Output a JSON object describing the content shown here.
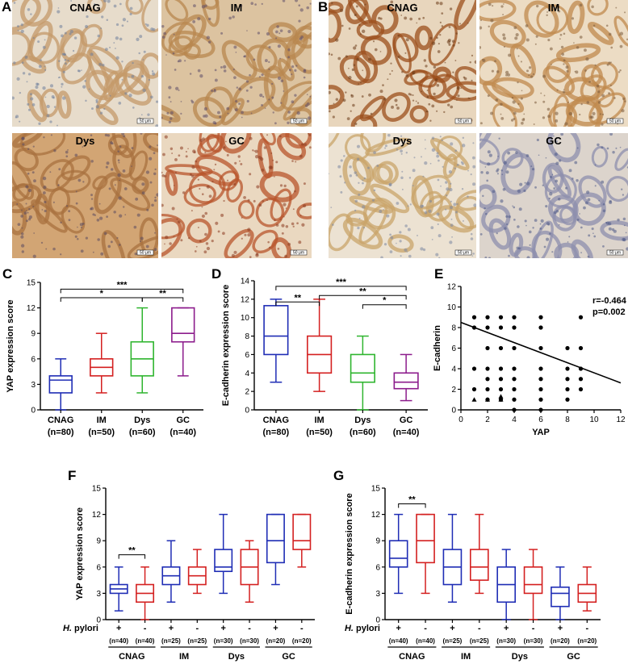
{
  "panels": {
    "A": {
      "label": "A",
      "images": [
        {
          "label": "CNAG",
          "scale": "50 μm",
          "bg": "#e7dccb",
          "tone": "#c49a6a",
          "nuc": "#6f7f9c"
        },
        {
          "label": "IM",
          "scale": "50 μm",
          "bg": "#dcc3a0",
          "tone": "#b8874f",
          "nuc": "#5e4f6a"
        },
        {
          "label": "Dys",
          "scale": "50 μm",
          "bg": "#d2a574",
          "tone": "#a8713f",
          "nuc": "#5a4a60"
        },
        {
          "label": "GC",
          "scale": "50 μm",
          "bg": "#ead8c0",
          "tone": "#b8552c",
          "nuc": "#8a3a1f"
        }
      ]
    },
    "B": {
      "label": "B",
      "images": [
        {
          "label": "CNAG",
          "scale": "50 μm",
          "bg": "#e8d6bd",
          "tone": "#9c4f1c",
          "nuc": "#6a3a18"
        },
        {
          "label": "IM",
          "scale": "50 μm",
          "bg": "#ecdcc4",
          "tone": "#c08a4e",
          "nuc": "#7a5a3a"
        },
        {
          "label": "Dys",
          "scale": "50 μm",
          "bg": "#ece2d2",
          "tone": "#c9a46a",
          "nuc": "#7b86a0"
        },
        {
          "label": "GC",
          "scale": "50 μm",
          "bg": "#dcd4cc",
          "tone": "#8d8fae",
          "nuc": "#4f5a86"
        }
      ]
    }
  },
  "chart_data": [
    {
      "panel": "C",
      "type": "boxplot",
      "ylabel": "YAP  expression score",
      "ylim": [
        0,
        15
      ],
      "yticks": [
        0,
        3,
        6,
        9,
        12,
        15
      ],
      "categories": [
        "CNAG",
        "IM",
        "Dys",
        "GC"
      ],
      "ns": [
        "(n=80)",
        "(n=50)",
        "(n=60)",
        "(n=40)"
      ],
      "colors": [
        "#1f2db5",
        "#d42020",
        "#2fb52f",
        "#8c1c8c"
      ],
      "boxes": [
        {
          "min": 0,
          "q1": 2,
          "median": 3.5,
          "q3": 4,
          "max": 6
        },
        {
          "min": 2,
          "q1": 4,
          "median": 5,
          "q3": 6,
          "max": 9
        },
        {
          "min": 2,
          "q1": 4,
          "median": 6,
          "q3": 8,
          "max": 12
        },
        {
          "min": 4,
          "q1": 8,
          "median": 9,
          "q3": 12,
          "max": 12
        }
      ],
      "brackets": [
        {
          "from": 0,
          "to": 3,
          "label": "***",
          "y": 14.2
        },
        {
          "from": 0,
          "to": 2,
          "label": "*",
          "y": 13.2
        },
        {
          "from": 2,
          "to": 3,
          "label": "**",
          "y": 13.2
        }
      ]
    },
    {
      "panel": "D",
      "type": "boxplot",
      "ylabel": "E-cadherin  expression score",
      "ylim": [
        0,
        14
      ],
      "yticks": [
        0,
        2,
        4,
        6,
        8,
        10,
        12,
        14
      ],
      "categories": [
        "CNAG",
        "IM",
        "Dys",
        "GC"
      ],
      "ns": [
        "(n=80)",
        "(n=50)",
        "(n=60)",
        "(n=40)"
      ],
      "colors": [
        "#1f2db5",
        "#d42020",
        "#2fb52f",
        "#8c1c8c"
      ],
      "boxes": [
        {
          "min": 3,
          "q1": 6,
          "median": 8,
          "q3": 11.3,
          "max": 12
        },
        {
          "min": 2,
          "q1": 4,
          "median": 6,
          "q3": 8,
          "max": 12
        },
        {
          "min": 0,
          "q1": 3,
          "median": 4,
          "q3": 6,
          "max": 8
        },
        {
          "min": 1,
          "q1": 2.3,
          "median": 3,
          "q3": 4,
          "max": 6
        }
      ],
      "brackets": [
        {
          "from": 0,
          "to": 3,
          "label": "***",
          "y": 13.4
        },
        {
          "from": 1,
          "to": 3,
          "label": "**",
          "y": 12.4
        },
        {
          "from": 0,
          "to": 1,
          "label": "**",
          "y": 11.7
        },
        {
          "from": 2,
          "to": 3,
          "label": "*",
          "y": 11.4
        }
      ]
    },
    {
      "panel": "E",
      "type": "scatter",
      "xlabel": "YAP",
      "ylabel": "E-cadherin",
      "xlim": [
        0,
        12
      ],
      "ylim": [
        0,
        12
      ],
      "xticks": [
        0,
        2,
        4,
        6,
        8,
        10,
        12
      ],
      "yticks": [
        0,
        2,
        4,
        6,
        8,
        10,
        12
      ],
      "annotation": [
        "r=-0.464",
        "p=0.002"
      ],
      "fit": {
        "slope": -0.49,
        "intercept": 8.5
      },
      "points": [
        [
          1,
          9
        ],
        [
          1,
          8
        ],
        [
          1,
          4
        ],
        [
          1,
          2
        ],
        [
          2,
          9
        ],
        [
          2,
          8
        ],
        [
          2,
          6
        ],
        [
          2,
          4
        ],
        [
          2,
          3
        ],
        [
          2,
          2
        ],
        [
          2,
          1
        ],
        [
          3,
          9
        ],
        [
          3,
          8
        ],
        [
          3,
          6
        ],
        [
          3,
          4
        ],
        [
          3,
          3
        ],
        [
          3,
          2
        ],
        [
          3,
          1
        ],
        [
          4,
          9
        ],
        [
          4,
          8
        ],
        [
          4,
          6
        ],
        [
          4,
          4
        ],
        [
          4,
          3
        ],
        [
          4,
          2
        ],
        [
          4,
          1
        ],
        [
          4,
          0
        ],
        [
          6,
          9
        ],
        [
          6,
          8
        ],
        [
          6,
          6
        ],
        [
          6,
          4
        ],
        [
          6,
          3
        ],
        [
          6,
          2
        ],
        [
          6,
          1
        ],
        [
          6,
          0
        ],
        [
          8,
          6
        ],
        [
          8,
          4
        ],
        [
          8,
          3
        ],
        [
          8,
          2
        ],
        [
          8,
          1
        ],
        [
          9,
          9
        ],
        [
          9,
          6
        ],
        [
          9,
          4
        ],
        [
          9,
          3
        ],
        [
          9,
          2
        ]
      ],
      "triangles": [
        [
          1,
          1
        ],
        [
          2,
          1
        ],
        [
          3,
          1.3
        ],
        [
          3,
          1
        ]
      ]
    },
    {
      "panel": "F",
      "type": "boxplot-grouped",
      "ylabel": "YAP expression score",
      "ylim": [
        0,
        15
      ],
      "yticks": [
        0,
        3,
        6,
        9,
        12,
        15
      ],
      "hp_label_italic": "H.",
      "hp_label": " pylori",
      "signs": [
        "+",
        "-",
        "+",
        "-",
        "+",
        "-",
        "+",
        "-"
      ],
      "ns": [
        "(n=40)",
        "(n=40)",
        "(n=25)",
        "(n=25)",
        "(n=30)",
        "(n=30)",
        "(n=20)",
        "(n=20)"
      ],
      "groups": [
        "CNAG",
        "IM",
        "Dys",
        "GC"
      ],
      "colors": [
        "#1f2db5",
        "#d42020"
      ],
      "boxes": [
        {
          "min": 1,
          "q1": 3,
          "median": 3.5,
          "q3": 4,
          "max": 6
        },
        {
          "min": 0,
          "q1": 2,
          "median": 3,
          "q3": 4,
          "max": 6
        },
        {
          "min": 2,
          "q1": 4,
          "median": 5,
          "q3": 6,
          "max": 9
        },
        {
          "min": 3,
          "q1": 4,
          "median": 5,
          "q3": 6,
          "max": 8
        },
        {
          "min": 3,
          "q1": 5.5,
          "median": 6,
          "q3": 8,
          "max": 12
        },
        {
          "min": 2,
          "q1": 4,
          "median": 6,
          "q3": 8,
          "max": 9
        },
        {
          "min": 4,
          "q1": 6.5,
          "median": 9,
          "q3": 12,
          "max": 12
        },
        {
          "min": 6,
          "q1": 8,
          "median": 9,
          "q3": 12,
          "max": 12
        }
      ],
      "brackets": [
        {
          "from": 0,
          "to": 1,
          "label": "**",
          "y": 7.4
        }
      ]
    },
    {
      "panel": "G",
      "type": "boxplot-grouped",
      "ylabel": "E-cadherin expression score",
      "ylim": [
        0,
        15
      ],
      "yticks": [
        0,
        3,
        6,
        9,
        12,
        15
      ],
      "hp_label_italic": "H.",
      "hp_label": " pylori",
      "signs": [
        "+",
        "-",
        "+",
        "-",
        "+",
        "-",
        "+",
        "-"
      ],
      "ns": [
        "(n=40)",
        "(n=40)",
        "(n=25)",
        "(n=25)",
        "(n=30)",
        "(n=30)",
        "(n=20)",
        "(n=20)"
      ],
      "groups": [
        "CNAG",
        "IM",
        "Dys",
        "GC"
      ],
      "colors": [
        "#1f2db5",
        "#d42020"
      ],
      "boxes": [
        {
          "min": 3,
          "q1": 6,
          "median": 7,
          "q3": 9,
          "max": 12
        },
        {
          "min": 3,
          "q1": 6.5,
          "median": 9,
          "q3": 12,
          "max": 12
        },
        {
          "min": 2,
          "q1": 4,
          "median": 6,
          "q3": 8,
          "max": 12
        },
        {
          "min": 3,
          "q1": 4.5,
          "median": 6,
          "q3": 8,
          "max": 12
        },
        {
          "min": 0,
          "q1": 2,
          "median": 4,
          "q3": 6,
          "max": 8
        },
        {
          "min": 0,
          "q1": 3,
          "median": 4,
          "q3": 6,
          "max": 8
        },
        {
          "min": 0,
          "q1": 1.5,
          "median": 3,
          "q3": 3.7,
          "max": 6
        },
        {
          "min": 1,
          "q1": 2,
          "median": 3,
          "q3": 4,
          "max": 6
        }
      ],
      "brackets": [
        {
          "from": 0,
          "to": 1,
          "label": "**",
          "y": 13.2
        }
      ]
    }
  ]
}
